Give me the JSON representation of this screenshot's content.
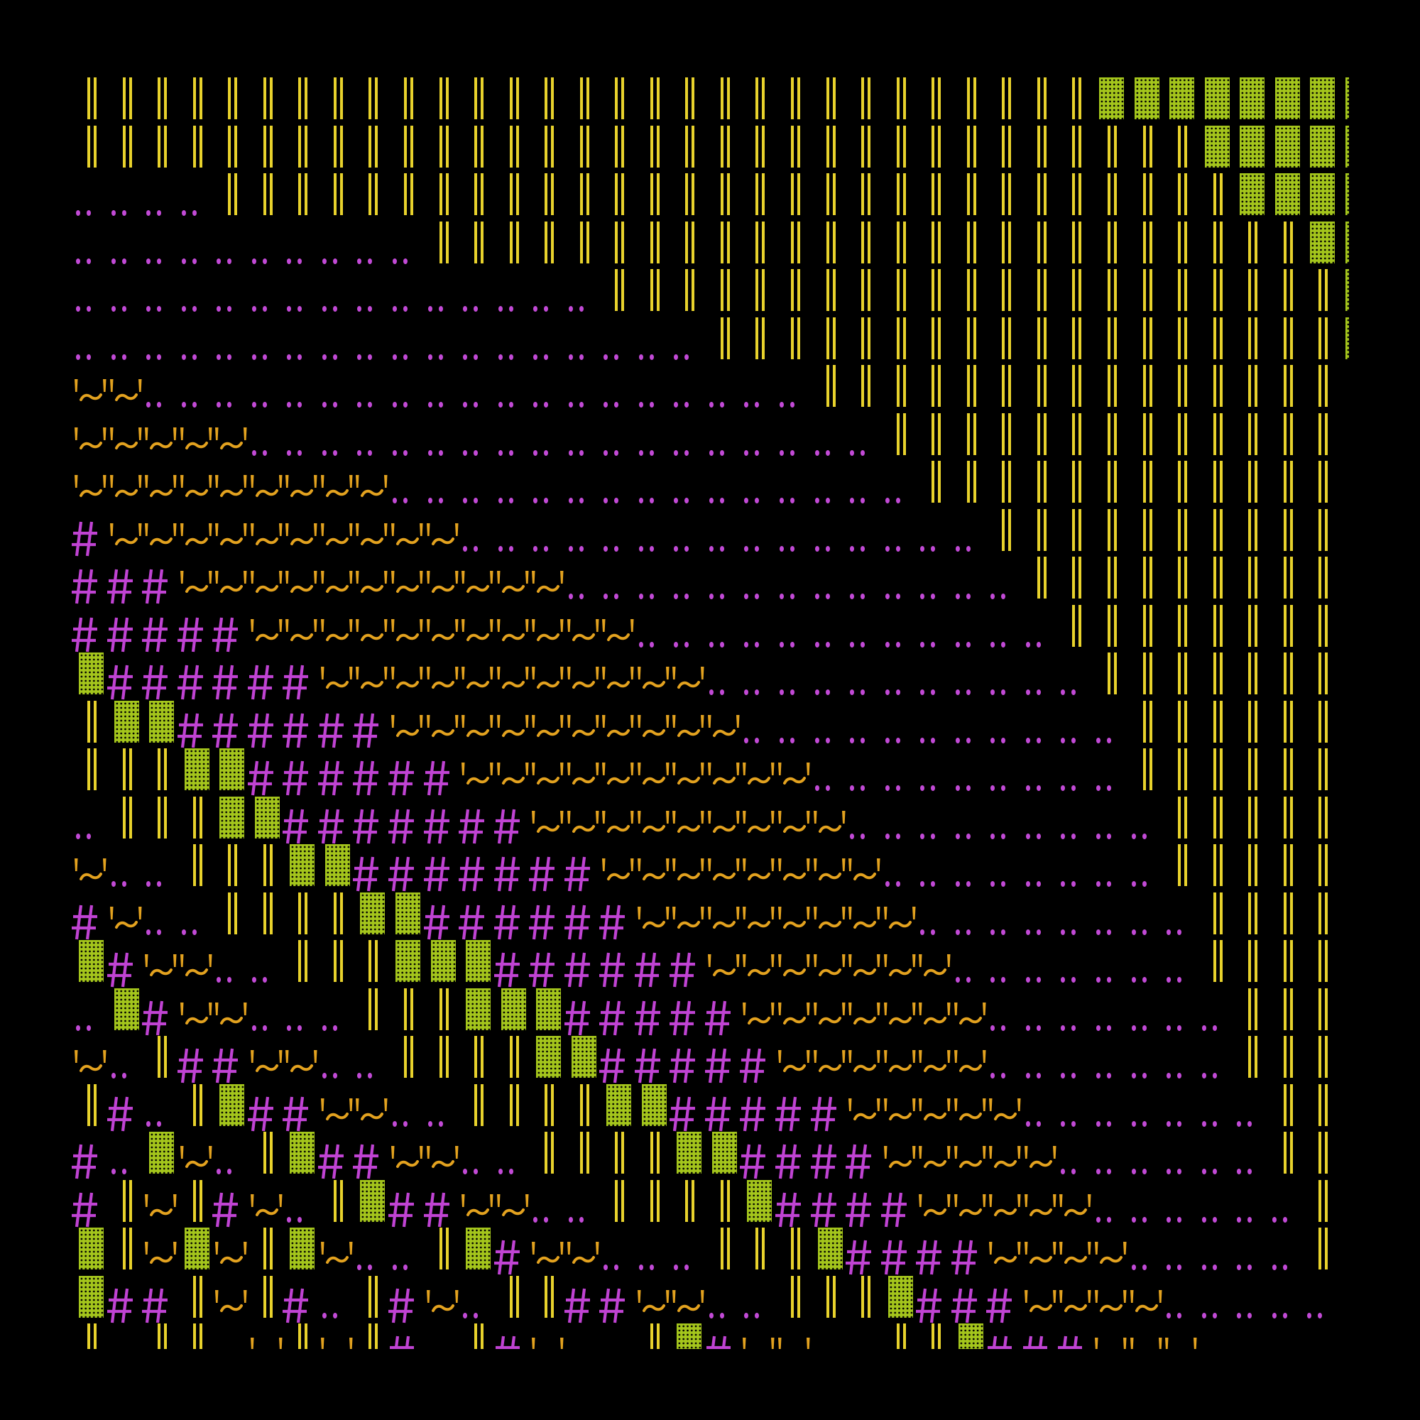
{
  "background": "#000000",
  "glyphs": {
    "‖": {
      "name": "double-bar",
      "color": "#e8d22c"
    },
    "▓": {
      "name": "shaded-block",
      "color": "#a4c51c"
    },
    "#": {
      "name": "hash",
      "color": "#c043d3"
    },
    "~": {
      "name": "quote-tilde",
      "color": "#e3a21f"
    },
    "‥": {
      "name": "two-dot-leader",
      "color": "#c24ad6"
    },
    " ": {
      "name": "blank",
      "color": "#000000"
    }
  },
  "rows": [
    [
      [
        "‖",
        29
      ],
      [
        "▓",
        8
      ]
    ],
    [
      [
        "‖",
        32
      ],
      [
        "▓",
        5
      ]
    ],
    [
      [
        "‥",
        4
      ],
      [
        "‖",
        29
      ],
      [
        "▓",
        4
      ]
    ],
    [
      [
        "‥",
        10
      ],
      [
        "‖",
        25
      ],
      [
        "▓",
        2
      ]
    ],
    [
      [
        "‥",
        15
      ],
      [
        "‖",
        21
      ],
      [
        "▓",
        1
      ]
    ],
    [
      [
        "‥",
        18
      ],
      [
        "‖",
        18
      ],
      [
        "▓",
        1
      ]
    ],
    [
      [
        "~",
        2
      ],
      [
        "‥",
        19
      ],
      [
        "‖",
        15
      ]
    ],
    [
      [
        "~",
        5
      ],
      [
        "‥",
        18
      ],
      [
        "‖",
        13
      ]
    ],
    [
      [
        "~",
        9
      ],
      [
        "‥",
        15
      ],
      [
        "‖",
        12
      ]
    ],
    [
      [
        "#",
        1
      ],
      [
        "~",
        10
      ],
      [
        "‥",
        15
      ],
      [
        "‖",
        10
      ]
    ],
    [
      [
        "#",
        3
      ],
      [
        "~",
        11
      ],
      [
        "‥",
        13
      ],
      [
        "‖",
        9
      ]
    ],
    [
      [
        "#",
        5
      ],
      [
        "~",
        11
      ],
      [
        "‥",
        12
      ],
      [
        "‖",
        8
      ]
    ],
    [
      [
        "▓",
        1
      ],
      [
        "#",
        6
      ],
      [
        "~",
        11
      ],
      [
        "‥",
        11
      ],
      [
        "‖",
        7
      ]
    ],
    [
      [
        "‖",
        1
      ],
      [
        "▓",
        2
      ],
      [
        "#",
        6
      ],
      [
        "~",
        10
      ],
      [
        "‥",
        11
      ],
      [
        "‖",
        6
      ]
    ],
    [
      [
        "‖",
        3
      ],
      [
        "▓",
        2
      ],
      [
        "#",
        6
      ],
      [
        "~",
        10
      ],
      [
        "‥",
        9
      ],
      [
        "‖",
        6
      ]
    ],
    [
      [
        "‥",
        1
      ],
      [
        "‖",
        3
      ],
      [
        "▓",
        2
      ],
      [
        "#",
        7
      ],
      [
        "~",
        9
      ],
      [
        "‥",
        9
      ],
      [
        "‖",
        5
      ]
    ],
    [
      [
        "~",
        1
      ],
      [
        "‥",
        2
      ],
      [
        "‖",
        3
      ],
      [
        "▓",
        2
      ],
      [
        "#",
        7
      ],
      [
        "~",
        8
      ],
      [
        "‥",
        8
      ],
      [
        "‖",
        5
      ]
    ],
    [
      [
        "#",
        1
      ],
      [
        "~",
        1
      ],
      [
        "‥",
        2
      ],
      [
        "‖",
        4
      ],
      [
        "▓",
        2
      ],
      [
        "#",
        6
      ],
      [
        "~",
        8
      ],
      [
        "‥",
        8
      ],
      [
        "‖",
        4
      ]
    ],
    [
      [
        "▓",
        1
      ],
      [
        "#",
        1
      ],
      [
        "~",
        2
      ],
      [
        "‥",
        2
      ],
      [
        "‖",
        3
      ],
      [
        "▓",
        3
      ],
      [
        "#",
        6
      ],
      [
        "~",
        7
      ],
      [
        "‥",
        7
      ],
      [
        "‖",
        4
      ]
    ],
    [
      [
        "‥",
        1
      ],
      [
        "▓",
        1
      ],
      [
        "#",
        1
      ],
      [
        "~",
        2
      ],
      [
        "‥",
        3
      ],
      [
        "‖",
        3
      ],
      [
        "▓",
        3
      ],
      [
        "#",
        5
      ],
      [
        "~",
        7
      ],
      [
        "‥",
        7
      ],
      [
        "‖",
        3
      ]
    ],
    [
      [
        "~",
        1
      ],
      [
        "‥",
        1
      ],
      [
        "‖",
        1
      ],
      [
        "#",
        2
      ],
      [
        "~",
        2
      ],
      [
        "‥",
        2
      ],
      [
        "‖",
        4
      ],
      [
        "▓",
        2
      ],
      [
        "#",
        5
      ],
      [
        "~",
        6
      ],
      [
        "‥",
        7
      ],
      [
        "‖",
        3
      ]
    ],
    [
      [
        "‖",
        1
      ],
      [
        "#",
        1
      ],
      [
        "‥",
        1
      ],
      [
        "‖",
        1
      ],
      [
        "▓",
        1
      ],
      [
        "#",
        2
      ],
      [
        "~",
        2
      ],
      [
        "‥",
        2
      ],
      [
        "‖",
        4
      ],
      [
        "▓",
        2
      ],
      [
        "#",
        5
      ],
      [
        "~",
        5
      ],
      [
        "‥",
        7
      ],
      [
        "‖",
        2
      ]
    ],
    [
      [
        "#",
        1
      ],
      [
        "‥",
        1
      ],
      [
        "▓",
        1
      ],
      [
        "~",
        1
      ],
      [
        "‥",
        1
      ],
      [
        "‖",
        1
      ],
      [
        "▓",
        1
      ],
      [
        "#",
        2
      ],
      [
        "~",
        2
      ],
      [
        "‥",
        2
      ],
      [
        "‖",
        4
      ],
      [
        "▓",
        2
      ],
      [
        "#",
        4
      ],
      [
        "~",
        5
      ],
      [
        "‥",
        6
      ],
      [
        "‖",
        2
      ]
    ],
    [
      [
        "#",
        1
      ],
      [
        "‖",
        1
      ],
      [
        "~",
        1
      ],
      [
        "‖",
        1
      ],
      [
        "#",
        1
      ],
      [
        "~",
        1
      ],
      [
        "‥",
        1
      ],
      [
        "‖",
        1
      ],
      [
        "▓",
        1
      ],
      [
        "#",
        2
      ],
      [
        "~",
        2
      ],
      [
        "‥",
        2
      ],
      [
        "‖",
        4
      ],
      [
        "▓",
        1
      ],
      [
        "#",
        4
      ],
      [
        "~",
        5
      ],
      [
        "‥",
        6
      ],
      [
        "‖",
        1
      ]
    ],
    [
      [
        "▓",
        1
      ],
      [
        "‖",
        1
      ],
      [
        "~",
        1
      ],
      [
        "▓",
        1
      ],
      [
        "~",
        1
      ],
      [
        "‖",
        1
      ],
      [
        "▓",
        1
      ],
      [
        "~",
        1
      ],
      [
        "‥",
        2
      ],
      [
        "‖",
        1
      ],
      [
        "▓",
        1
      ],
      [
        "#",
        1
      ],
      [
        "~",
        2
      ],
      [
        "‥",
        3
      ],
      [
        "‖",
        3
      ],
      [
        "▓",
        1
      ],
      [
        "#",
        4
      ],
      [
        "~",
        4
      ],
      [
        "‥",
        5
      ],
      [
        "‖",
        1
      ]
    ],
    [
      [
        "▓",
        1
      ],
      [
        "#",
        2
      ],
      [
        "‖",
        1
      ],
      [
        "~",
        1
      ],
      [
        "‖",
        1
      ],
      [
        "#",
        1
      ],
      [
        "‥",
        1
      ],
      [
        "‖",
        1
      ],
      [
        "#",
        1
      ],
      [
        "~",
        1
      ],
      [
        "‥",
        1
      ],
      [
        "‖",
        2
      ],
      [
        "#",
        2
      ],
      [
        "~",
        2
      ],
      [
        "‥",
        2
      ],
      [
        "‖",
        3
      ],
      [
        "▓",
        1
      ],
      [
        "#",
        3
      ],
      [
        "~",
        4
      ],
      [
        "‥",
        5
      ]
    ],
    [
      [
        "‖",
        1
      ],
      [
        " ",
        1
      ],
      [
        "‖",
        2
      ],
      [
        " ",
        1
      ],
      [
        "~",
        1
      ],
      [
        "‖",
        1
      ],
      [
        "~",
        1
      ],
      [
        "‖",
        1
      ],
      [
        "#",
        1
      ],
      [
        " ",
        1
      ],
      [
        "‖",
        1
      ],
      [
        "#",
        1
      ],
      [
        "~",
        1
      ],
      [
        " ",
        2
      ],
      [
        "‖",
        1
      ],
      [
        "▓",
        1
      ],
      [
        "#",
        1
      ],
      [
        "~",
        2
      ],
      [
        " ",
        2
      ],
      [
        "‖",
        2
      ],
      [
        "▓",
        1
      ],
      [
        "#",
        3
      ],
      [
        "~",
        3
      ]
    ]
  ]
}
